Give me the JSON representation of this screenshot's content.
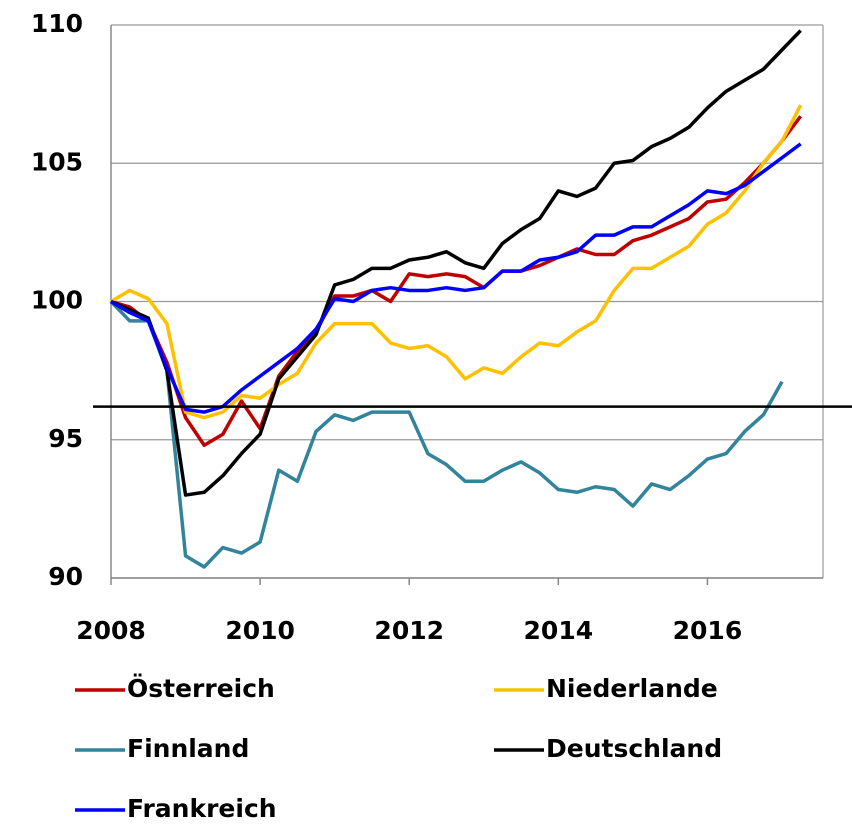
{
  "chart_data": {
    "type": "line",
    "x": [
      2008,
      2008.25,
      2008.5,
      2008.75,
      2009,
      2009.25,
      2009.5,
      2009.75,
      2010,
      2010.25,
      2010.5,
      2010.75,
      2011,
      2011.25,
      2011.5,
      2011.75,
      2012,
      2012.25,
      2012.5,
      2012.75,
      2013,
      2013.25,
      2013.5,
      2013.75,
      2014,
      2014.25,
      2014.5,
      2014.75,
      2015,
      2015.25,
      2015.5,
      2015.75,
      2016,
      2016.25,
      2016.5,
      2016.75,
      2017,
      2017.25
    ],
    "series": [
      {
        "name": "Österreich",
        "color": "#c00000",
        "values": [
          100,
          99.8,
          99.3,
          97.8,
          95.8,
          94.8,
          95.2,
          96.4,
          95.4,
          97.3,
          98.2,
          98.9,
          100.2,
          100.2,
          100.4,
          100.0,
          101.0,
          100.9,
          101.0,
          100.9,
          100.5,
          101.1,
          101.1,
          101.3,
          101.6,
          101.9,
          101.7,
          101.7,
          102.2,
          102.4,
          102.7,
          103.0,
          103.6,
          103.7,
          104.3,
          105.0,
          105.8,
          106.7
        ]
      },
      {
        "name": "Niederlande",
        "color": "#ffc000",
        "values": [
          100,
          100.4,
          100.1,
          99.2,
          96.0,
          95.8,
          96.0,
          96.6,
          96.5,
          97.0,
          97.4,
          98.5,
          99.2,
          99.2,
          99.2,
          98.5,
          98.3,
          98.4,
          98.0,
          97.2,
          97.6,
          97.4,
          98.0,
          98.5,
          98.4,
          98.9,
          99.3,
          100.4,
          101.2,
          101.2,
          101.6,
          102.0,
          102.8,
          103.2,
          104.0,
          105.0,
          105.8,
          107.1
        ]
      },
      {
        "name": "Finnland",
        "color": "#31849b",
        "values": [
          100,
          99.3,
          99.3,
          97.5,
          90.8,
          90.4,
          91.1,
          90.9,
          91.3,
          93.9,
          93.5,
          95.3,
          95.9,
          95.7,
          96.0,
          96.0,
          96.0,
          94.5,
          94.1,
          93.5,
          93.5,
          93.9,
          94.2,
          93.8,
          93.2,
          93.1,
          93.3,
          93.2,
          92.6,
          93.4,
          93.2,
          93.7,
          94.3,
          94.5,
          95.3,
          95.9,
          97.1,
          null
        ]
      },
      {
        "name": "Deutschland",
        "color": "#000000",
        "values": [
          100,
          99.7,
          99.4,
          97.5,
          93.0,
          93.1,
          93.7,
          94.5,
          95.2,
          97.2,
          98.0,
          98.8,
          100.6,
          100.8,
          101.2,
          101.2,
          101.5,
          101.6,
          101.8,
          101.4,
          101.2,
          102.1,
          102.6,
          103.0,
          104.0,
          103.8,
          104.1,
          105.0,
          105.1,
          105.6,
          105.9,
          106.3,
          107.0,
          107.6,
          108.0,
          108.4,
          109.1,
          109.8
        ]
      },
      {
        "name": "Frankreich",
        "color": "#0000ff",
        "values": [
          100,
          99.6,
          99.3,
          97.6,
          96.1,
          96.0,
          96.2,
          96.8,
          97.3,
          97.8,
          98.3,
          99.0,
          100.1,
          100.0,
          100.4,
          100.5,
          100.4,
          100.4,
          100.5,
          100.4,
          100.5,
          101.1,
          101.1,
          101.5,
          101.6,
          101.8,
          102.4,
          102.4,
          102.7,
          102.7,
          103.1,
          103.5,
          104.0,
          103.9,
          104.2,
          104.7,
          105.2,
          105.7
        ]
      }
    ],
    "xlim": [
      2008,
      2017.55
    ],
    "xticks": [
      2008,
      2010,
      2012,
      2014,
      2016
    ],
    "ylim": [
      90,
      110
    ],
    "yticks": [
      90,
      95,
      100,
      105,
      110
    ],
    "grid": true,
    "hline": 96.2
  }
}
